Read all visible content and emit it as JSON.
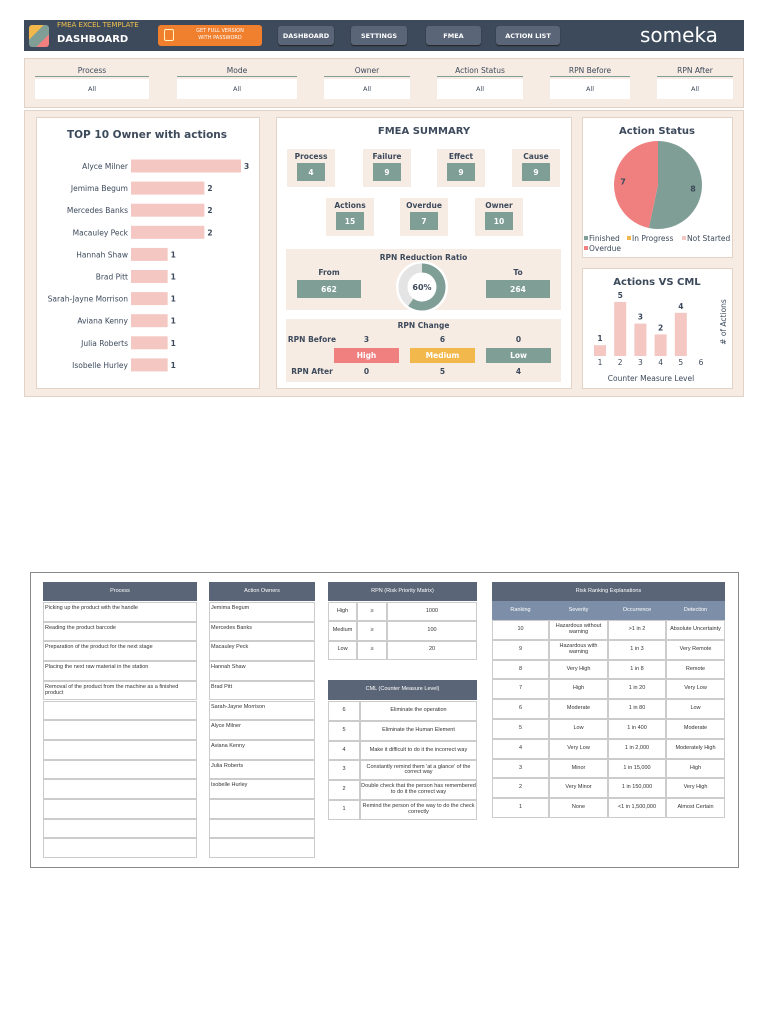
{
  "header": {
    "template": "FMEA EXCEL TEMPLATE",
    "title": "DASHBOARD",
    "promo": [
      "GET FULL VERSION",
      "WITH PASSWORD"
    ],
    "nav": [
      "DASHBOARD",
      "SETTINGS",
      "FMEA",
      "ACTION LIST"
    ],
    "brand": "someka"
  },
  "filters": [
    {
      "label": "Process",
      "value": "All"
    },
    {
      "label": "Mode",
      "value": "All"
    },
    {
      "label": "Owner",
      "value": "All"
    },
    {
      "label": "Action Status",
      "value": "All"
    },
    {
      "label": "RPN Before",
      "value": "All"
    },
    {
      "label": "RPN After",
      "value": "All"
    }
  ],
  "summary": {
    "title": "FMEA SUMMARY",
    "counts": [
      {
        "label": "Process",
        "value": 4
      },
      {
        "label": "Failure",
        "value": 9
      },
      {
        "label": "Effect",
        "value": 9
      },
      {
        "label": "Cause",
        "value": 9
      },
      {
        "label": "Actions",
        "value": 15
      },
      {
        "label": "Overdue",
        "value": 7
      },
      {
        "label": "Owner",
        "value": 10
      }
    ],
    "reduction": {
      "title": "RPN Reduction Ratio",
      "from_label": "From",
      "from": 662,
      "to_label": "To",
      "to": 264,
      "ratio": 60,
      "ratio_label": "60%"
    },
    "change": {
      "title": "RPN Change",
      "before_label": "RPN Before",
      "after_label": "RPN After",
      "levels": [
        "High",
        "Medium",
        "Low"
      ],
      "colors": [
        "#f08080",
        "#f2b84b",
        "#7f9e96"
      ],
      "before": [
        3,
        6,
        0
      ],
      "after": [
        0,
        5,
        4
      ]
    }
  },
  "chart_data": [
    {
      "type": "hbar",
      "title": "TOP 10 Owner with actions",
      "color": "#f4c7c3",
      "categories": [
        "Alyce Milner",
        "Jemima Begum",
        "Mercedes Banks",
        "Macauley Peck",
        "Hannah Shaw",
        "Brad Pitt",
        "Sarah-Jayne Morrison",
        "Aviana Kenny",
        "Julia Roberts",
        "Isobelle Hurley"
      ],
      "values": [
        3,
        2,
        2,
        2,
        1,
        1,
        1,
        1,
        1,
        1
      ]
    },
    {
      "type": "pie",
      "title": "Action Status",
      "categories": [
        "Finished",
        "In Progress",
        "Not Started",
        "Overdue"
      ],
      "values": [
        8,
        0,
        0,
        7
      ],
      "colors": [
        "#7f9e96",
        "#f2b84b",
        "#f4c7c3",
        "#f08080"
      ]
    },
    {
      "type": "bar",
      "title": "Actions VS CML",
      "color": "#f4c7c3",
      "categories": [
        "1",
        "2",
        "3",
        "4",
        "5",
        "6"
      ],
      "values": [
        1,
        5,
        3,
        2,
        4,
        null
      ],
      "x_label": "Counter Measure Level",
      "y_label": "# of Actions"
    }
  ],
  "reference": {
    "process": {
      "header": "Process",
      "rows": [
        "Picking up the product with the handle",
        "Reading the product barcode",
        "Preparation of the product for the next stage",
        "Placing the next raw material in the station",
        "Removal of the product from the machine as a finished product"
      ]
    },
    "owners": {
      "header": "Action Owners",
      "rows": [
        "Jemima Begum",
        "Mercedes Banks",
        "Macauley Peck",
        "Hannah Shaw",
        "Brad Pitt",
        "Sarah-Jayne Morrison",
        "Alyce Milner",
        "Aviana Kenny",
        "Julia Roberts",
        "Isobelle Hurley"
      ]
    },
    "rpn_matrix": {
      "header": "RPN (Risk Priority Matrix)",
      "rows": [
        [
          "High",
          "≥",
          1000
        ],
        [
          "Medium",
          "≥",
          100
        ],
        [
          "Low",
          "≥",
          20
        ]
      ]
    },
    "cml": {
      "header": "CML (Counter Measure Level)",
      "rows": [
        [
          6,
          "Eliminate the operation"
        ],
        [
          5,
          "Eliminate the Human Element"
        ],
        [
          4,
          "Make it difficult to do it the incorrect way"
        ],
        [
          3,
          "Constantly remind them 'at a glance' of the correct way"
        ],
        [
          2,
          "Double check that the person has remembered to do it the correct way"
        ],
        [
          1,
          "Remind the person of the way to do the check correctly"
        ]
      ]
    },
    "ranking": {
      "header": "Risk Ranking Explanations",
      "columns": [
        "Ranking",
        "Severity",
        "Occurrence",
        "Detection"
      ],
      "rows": [
        [
          10,
          "Hazardous without warning",
          ">1 in 2",
          "Absolute Uncertainty"
        ],
        [
          9,
          "Hazardous with warning",
          "1 in 3",
          "Very Remote"
        ],
        [
          8,
          "Very High",
          "1 in 8",
          "Remote"
        ],
        [
          7,
          "High",
          "1 in 20",
          "Very Low"
        ],
        [
          6,
          "Moderate",
          "1 in 80",
          "Low"
        ],
        [
          5,
          "Low",
          "1 in 400",
          "Moderate"
        ],
        [
          4,
          "Very Low",
          "1 in 2,000",
          "Moderately High"
        ],
        [
          3,
          "Minor",
          "1 in 15,000",
          "High"
        ],
        [
          2,
          "Very Minor",
          "1 in 150,000",
          "Very High"
        ],
        [
          1,
          "None",
          "<1 in 1,500,000",
          "Almost Certain"
        ]
      ]
    }
  }
}
